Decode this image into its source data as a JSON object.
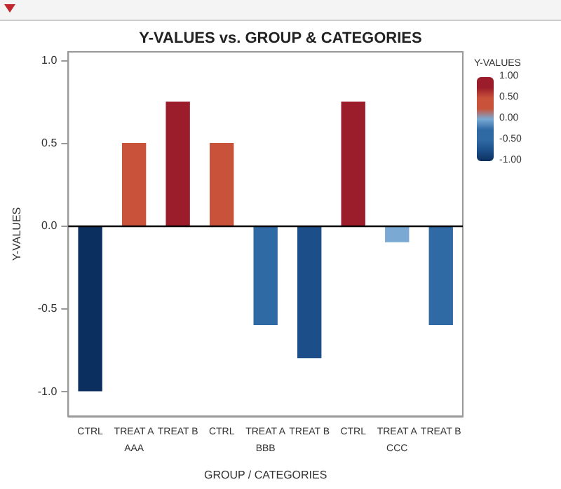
{
  "chart_data": {
    "type": "bar",
    "title": "Y-VALUES vs. GROUP & CATEGORIES",
    "xlabel": "GROUP / CATEGORIES",
    "ylabel": "Y-VALUES",
    "clabel": "Y-VALUES",
    "categories": [
      "CTRL",
      "TREAT A",
      "TREAT B",
      "CTRL",
      "TREAT A",
      "TREAT B",
      "CTRL",
      "TREAT A",
      "TREAT B"
    ],
    "values": [
      -1,
      0.5,
      0.75,
      0.5,
      -0.6,
      -0.8,
      0.75,
      -0.1,
      -0.6
    ],
    "colors": [
      "#0b2f5e",
      "#c9523a",
      "#9b1c2a",
      "#c9523a",
      "#2f6aa5",
      "#1c4f89",
      "#9b1c2a",
      "#7aaad4",
      "#2f6aa5"
    ],
    "annotations": [
      "AAA",
      "BBB",
      "CCC"
    ],
    "ylim": [
      -1.15,
      1.05
    ],
    "yticks": [
      {
        "value": -1,
        "label": "-1.0"
      },
      {
        "value": -0.5,
        "label": "-0.5"
      },
      {
        "value": 0,
        "label": "0.0"
      },
      {
        "value": 0.5,
        "label": "0.5"
      },
      {
        "value": 1,
        "label": "1.0"
      }
    ],
    "clim": [
      -1,
      1
    ],
    "cticks": [
      {
        "value": 1,
        "label": "1.00"
      },
      {
        "value": 0.5,
        "label": "0.50"
      },
      {
        "value": 0,
        "label": "0.00"
      },
      {
        "value": -0.5,
        "label": "-0.50"
      },
      {
        "value": -1,
        "label": "-1.00"
      }
    ],
    "ref_lines": [
      {
        "axis": "y",
        "value": 0,
        "color": "#000000"
      }
    ],
    "grid": false
  }
}
